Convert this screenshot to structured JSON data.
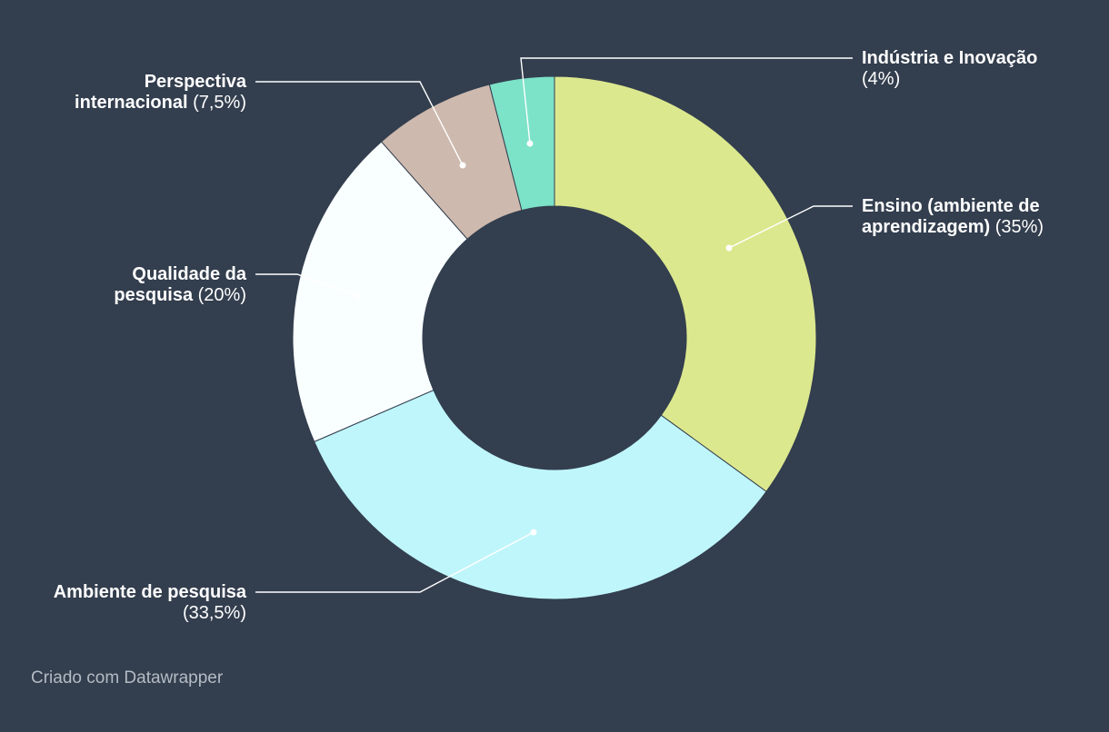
{
  "chart_data": {
    "type": "pie",
    "donut": true,
    "categories": [
      "Ensino (ambiente de aprendizagem)",
      "Ambiente de pesquisa",
      "Qualidade da pesquisa",
      "Perspectiva internacional",
      "Indústria e Inovação"
    ],
    "values": [
      35,
      33.5,
      20,
      7.5,
      4
    ],
    "slices": [
      {
        "name_lines": [
          "Ensino (ambiente de",
          "aprendizagem)"
        ],
        "value_label": "(35%)",
        "value": 35,
        "color": "#dce88e"
      },
      {
        "name_lines": [
          "Ambiente de pesquisa"
        ],
        "value_label": "(33,5%)",
        "value": 33.5,
        "color": "#bff6fb"
      },
      {
        "name_lines": [
          "Qualidade da",
          "pesquisa"
        ],
        "value_label": "(20%)",
        "value": 20,
        "color": "#f9ffff"
      },
      {
        "name_lines": [
          "Perspectiva",
          "internacional"
        ],
        "value_label": "(7,5%)",
        "value": 7.5,
        "color": "#cdb9ae"
      },
      {
        "name_lines": [
          "Indústria e Inovação"
        ],
        "value_label": "(4%)",
        "value": 4,
        "color": "#7ce2c8"
      }
    ]
  },
  "theme": {
    "background": "#333e4e",
    "label_color": "#ffffff",
    "credit_color": "#b4bbc4"
  },
  "credit": "Criado com Datawrapper"
}
